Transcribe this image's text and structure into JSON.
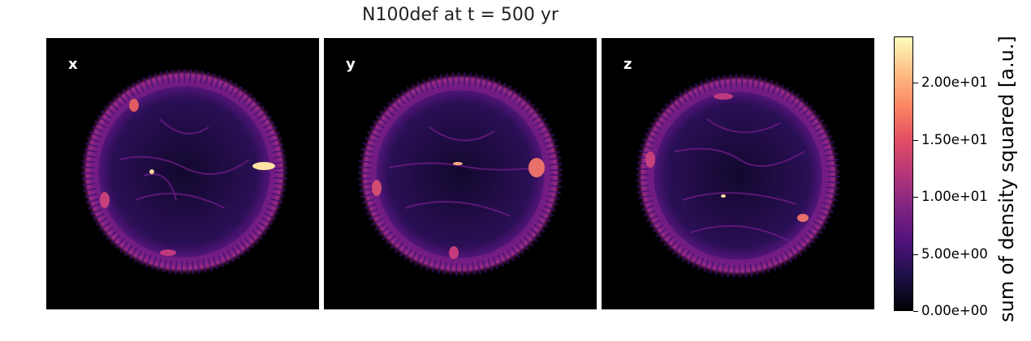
{
  "figure": {
    "title": "N100def at t = 500 yr",
    "panels": [
      {
        "label": "x"
      },
      {
        "label": "y"
      },
      {
        "label": "z"
      }
    ]
  },
  "colorbar": {
    "label": "sum of density squared [a.u.]",
    "colormap": "magma",
    "ticks": [
      "0.00e+00",
      "5.00e+00",
      "1.00e+01",
      "1.50e+01",
      "2.00e+01"
    ],
    "range": [
      0,
      24
    ]
  }
}
